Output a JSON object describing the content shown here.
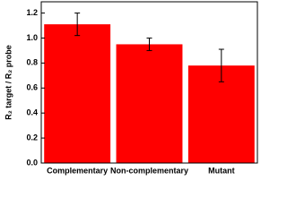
{
  "chart_data": {
    "type": "bar",
    "y_label": "R₂ target / R₂ probe",
    "categories": [
      "Complementary",
      "Non-complementary",
      "Mutant"
    ],
    "values": [
      1.11,
      0.95,
      0.78
    ],
    "errors": [
      0.09,
      0.05,
      0.13
    ],
    "color": "#ff0000",
    "ylim": [
      0,
      1.29
    ],
    "yticks": [
      {
        "value": 0,
        "label": "0.0"
      },
      0.2,
      0.4,
      0.6,
      0.8,
      {
        "value": 1,
        "label": "1.0"
      },
      1.2
    ]
  }
}
